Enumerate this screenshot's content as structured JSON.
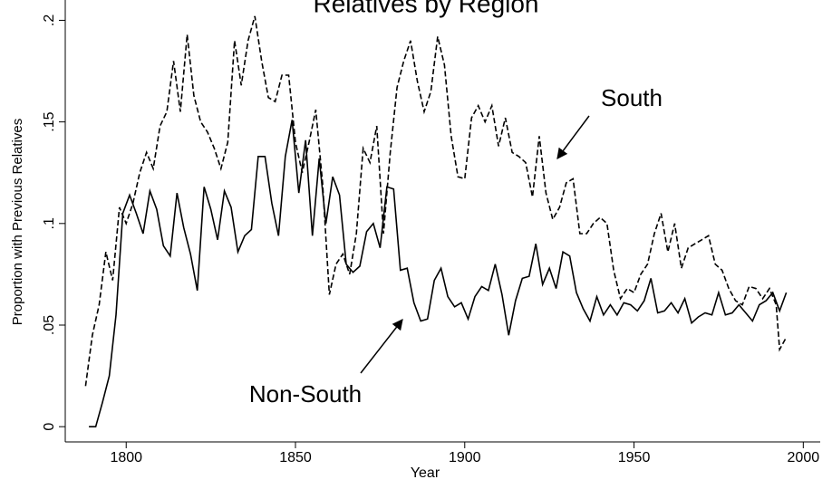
{
  "chart_data": {
    "type": "line",
    "title": "Relatives by Region",
    "x_label": "Year",
    "y_label": "Proportion with Previous Relatives",
    "xlim": [
      1782,
      2005
    ],
    "xticks": [
      1800,
      1850,
      1900,
      1950,
      2000
    ],
    "ylim": [
      -0.0075,
      0.21
    ],
    "yticks": [
      0,
      {
        "value": 0.05,
        "label": ".05"
      },
      {
        "value": 0.1,
        "label": ".1"
      },
      {
        "value": 0.15,
        "label": ".15"
      },
      {
        "value": 0.2,
        "label": ".2"
      }
    ],
    "grid": false,
    "series": [
      {
        "name": "South",
        "color": "#000000",
        "line_style": "dashed",
        "x": [
          1788,
          1790,
          1792,
          1794,
          1796,
          1798,
          1800,
          1802,
          1804,
          1806,
          1808,
          1810,
          1812,
          1814,
          1816,
          1818,
          1820,
          1822,
          1824,
          1826,
          1828,
          1830,
          1832,
          1834,
          1836,
          1838,
          1840,
          1842,
          1844,
          1846,
          1848,
          1850,
          1852,
          1854,
          1856,
          1858,
          1860,
          1862,
          1864,
          1866,
          1868,
          1870,
          1872,
          1874,
          1876,
          1878,
          1880,
          1882,
          1884,
          1886,
          1888,
          1890,
          1892,
          1894,
          1896,
          1898,
          1900,
          1902,
          1904,
          1906,
          1908,
          1910,
          1912,
          1914,
          1916,
          1918,
          1920,
          1922,
          1924,
          1926,
          1928,
          1930,
          1932,
          1934,
          1936,
          1938,
          1940,
          1942,
          1944,
          1946,
          1948,
          1950,
          1952,
          1954,
          1956,
          1958,
          1960,
          1962,
          1964,
          1966,
          1968,
          1970,
          1972,
          1974,
          1976,
          1978,
          1980,
          1982,
          1984,
          1986,
          1988,
          1990,
          1992,
          1993,
          1995
        ],
        "values": [
          0.02,
          0.045,
          0.06,
          0.086,
          0.072,
          0.108,
          0.1,
          0.11,
          0.125,
          0.135,
          0.127,
          0.148,
          0.155,
          0.18,
          0.155,
          0.193,
          0.163,
          0.15,
          0.145,
          0.137,
          0.127,
          0.14,
          0.19,
          0.168,
          0.19,
          0.202,
          0.18,
          0.162,
          0.16,
          0.173,
          0.173,
          0.14,
          0.125,
          0.14,
          0.156,
          0.12,
          0.065,
          0.08,
          0.085,
          0.075,
          0.095,
          0.137,
          0.13,
          0.148,
          0.095,
          0.135,
          0.167,
          0.18,
          0.19,
          0.17,
          0.155,
          0.165,
          0.192,
          0.178,
          0.143,
          0.123,
          0.122,
          0.152,
          0.158,
          0.15,
          0.158,
          0.138,
          0.152,
          0.135,
          0.133,
          0.13,
          0.113,
          0.143,
          0.115,
          0.102,
          0.108,
          0.12,
          0.122,
          0.095,
          0.095,
          0.1,
          0.103,
          0.1,
          0.077,
          0.063,
          0.068,
          0.066,
          0.075,
          0.08,
          0.095,
          0.105,
          0.086,
          0.1,
          0.078,
          0.088,
          0.09,
          0.092,
          0.094,
          0.08,
          0.077,
          0.068,
          0.062,
          0.06,
          0.069,
          0.068,
          0.063,
          0.068,
          0.06,
          0.038,
          0.044
        ]
      },
      {
        "name": "Non-South",
        "color": "#000000",
        "line_style": "solid",
        "x": [
          1789,
          1791,
          1793,
          1795,
          1797,
          1799,
          1801,
          1803,
          1805,
          1807,
          1809,
          1811,
          1813,
          1815,
          1817,
          1819,
          1821,
          1823,
          1825,
          1827,
          1829,
          1831,
          1833,
          1835,
          1837,
          1839,
          1841,
          1843,
          1845,
          1847,
          1849,
          1851,
          1853,
          1855,
          1857,
          1859,
          1861,
          1863,
          1865,
          1867,
          1869,
          1871,
          1873,
          1875,
          1877,
          1879,
          1881,
          1883,
          1885,
          1887,
          1889,
          1891,
          1893,
          1895,
          1897,
          1899,
          1901,
          1903,
          1905,
          1907,
          1909,
          1911,
          1913,
          1915,
          1917,
          1919,
          1921,
          1923,
          1925,
          1927,
          1929,
          1931,
          1933,
          1935,
          1937,
          1939,
          1941,
          1943,
          1945,
          1947,
          1949,
          1951,
          1953,
          1955,
          1957,
          1959,
          1961,
          1963,
          1965,
          1967,
          1969,
          1971,
          1973,
          1975,
          1977,
          1979,
          1981,
          1983,
          1985,
          1987,
          1989,
          1991,
          1993,
          1995
        ],
        "values": [
          0,
          0,
          0.012,
          0.025,
          0.055,
          0.105,
          0.114,
          0.105,
          0.095,
          0.116,
          0.107,
          0.089,
          0.084,
          0.115,
          0.098,
          0.085,
          0.067,
          0.118,
          0.107,
          0.092,
          0.116,
          0.108,
          0.086,
          0.094,
          0.097,
          0.133,
          0.133,
          0.11,
          0.094,
          0.133,
          0.151,
          0.115,
          0.141,
          0.094,
          0.132,
          0.1,
          0.123,
          0.114,
          0.08,
          0.076,
          0.079,
          0.096,
          0.1,
          0.088,
          0.118,
          0.117,
          0.077,
          0.078,
          0.061,
          0.052,
          0.053,
          0.072,
          0.078,
          0.064,
          0.059,
          0.061,
          0.053,
          0.064,
          0.069,
          0.067,
          0.08,
          0.065,
          0.045,
          0.062,
          0.073,
          0.074,
          0.09,
          0.07,
          0.078,
          0.068,
          0.086,
          0.084,
          0.066,
          0.058,
          0.052,
          0.064,
          0.055,
          0.06,
          0.055,
          0.061,
          0.06,
          0.057,
          0.062,
          0.073,
          0.056,
          0.057,
          0.061,
          0.056,
          0.063,
          0.051,
          0.054,
          0.056,
          0.055,
          0.066,
          0.055,
          0.056,
          0.06,
          0.056,
          0.052,
          0.06,
          0.062,
          0.066,
          0.057,
          0.066
        ]
      }
    ]
  }
}
